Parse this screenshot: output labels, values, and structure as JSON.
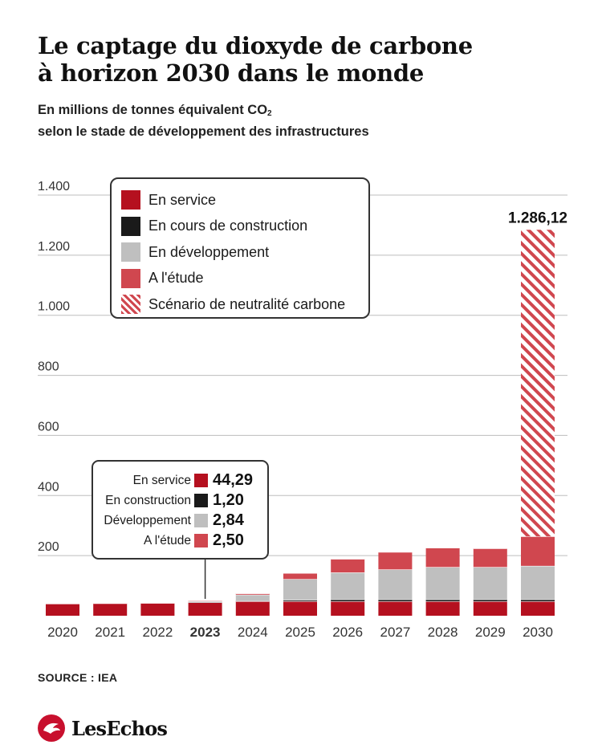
{
  "title_line1": "Le captage du dioxyde de carbone",
  "title_line2": "à horizon 2030 dans le monde",
  "subtitle_line1_prefix": "En millions de tonnes équivalent CO",
  "subtitle_line1_sub": "2",
  "subtitle_line2": "selon le stade de développement des infrastructures",
  "colors": {
    "en_service": "#b5101f",
    "construction": "#1a1a1a",
    "developpement": "#bfbfbf",
    "etude": "#d0474f",
    "scenario_stripe": "#d0474f",
    "grid": "#bdbdbd"
  },
  "legend": [
    {
      "label": "En service",
      "key": "en_service"
    },
    {
      "label": "En cours de construction",
      "key": "construction"
    },
    {
      "label": "En développement",
      "key": "developpement"
    },
    {
      "label": "A l'étude",
      "key": "etude"
    },
    {
      "label": "Scénario de neutralité carbone",
      "key": "scenario"
    }
  ],
  "tooltip": {
    "year": "2023",
    "rows": [
      {
        "label": "En service",
        "value": "44,29",
        "key": "en_service"
      },
      {
        "label": "En construction",
        "value": "1,20",
        "key": "construction"
      },
      {
        "label": "Développement",
        "value": "2,84",
        "key": "developpement"
      },
      {
        "label": "A l'étude",
        "value": "2,50",
        "key": "etude"
      }
    ]
  },
  "chart_data": {
    "type": "bar",
    "stacked": true,
    "categories": [
      "2020",
      "2021",
      "2022",
      "2023",
      "2024",
      "2025",
      "2026",
      "2027",
      "2028",
      "2029",
      "2030"
    ],
    "highlight_category": "2023",
    "ylim": [
      0,
      1400
    ],
    "yticks": [
      200,
      400,
      600,
      800,
      1000,
      1200,
      1400
    ],
    "ytick_labels": [
      "200",
      "400",
      "600",
      "800",
      "1.000",
      "1.200",
      "1.400"
    ],
    "grid": true,
    "series": [
      {
        "name": "En service",
        "key": "en_service",
        "values": [
          40,
          41,
          42,
          44.29,
          48,
          48,
          48,
          48,
          48,
          48,
          48
        ]
      },
      {
        "name": "En cours de construction",
        "key": "construction",
        "values": [
          0,
          0,
          0,
          1.2,
          2,
          4,
          6,
          6,
          6,
          6,
          6
        ]
      },
      {
        "name": "En développement",
        "key": "developpement",
        "values": [
          0,
          0,
          0,
          2.84,
          20,
          70,
          90,
          100,
          108,
          108,
          112
        ]
      },
      {
        "name": "A l'étude",
        "key": "etude",
        "values": [
          0,
          0,
          0,
          2.5,
          4,
          20,
          45,
          58,
          64,
          62,
          98
        ]
      },
      {
        "name": "Scénario de neutralité carbone",
        "key": "scenario",
        "values": [
          0,
          0,
          0,
          0,
          0,
          0,
          0,
          0,
          0,
          0,
          1022
        ]
      }
    ],
    "annotation": {
      "category": "2030",
      "label": "1.286,12",
      "value": 1286.12
    }
  },
  "source": "SOURCE : IEA",
  "brand": "LesEchos"
}
